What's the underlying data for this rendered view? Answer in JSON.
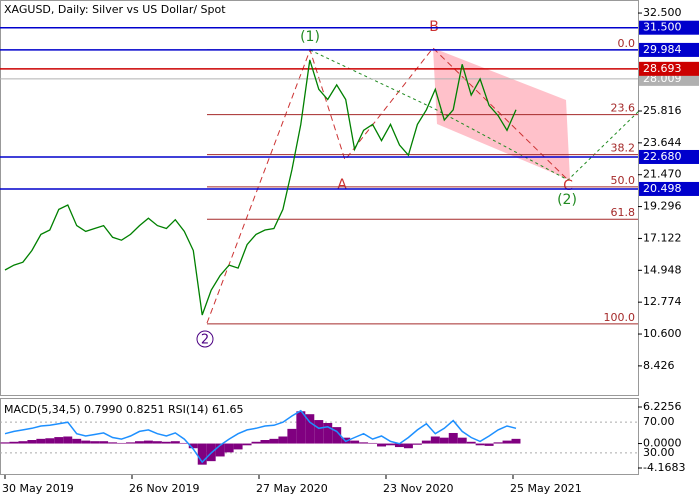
{
  "chart_data": {
    "type": "line",
    "title": "XAGUSD, Daily:  Silver vs US Dollar/ Spot",
    "x_labels": [
      "30 May 2019",
      "26 Nov 2019",
      "27 May 2020",
      "23 Nov 2020",
      "25 May 2021"
    ],
    "series": [
      {
        "color": "#008000",
        "values": [
          14.97,
          15.3,
          15.5,
          16.3,
          17.4,
          17.7,
          19.1,
          19.4,
          18.0,
          17.6,
          17.8,
          18.0,
          17.2,
          17.0,
          17.4,
          18.0,
          18.5,
          18.0,
          17.8,
          18.4,
          17.6,
          16.3,
          11.9,
          13.6,
          14.6,
          15.3,
          15.1,
          16.7,
          17.4,
          17.7,
          17.8,
          19.1,
          21.8,
          24.9,
          29.3,
          27.3,
          26.6,
          27.6,
          26.6,
          23.2,
          24.5,
          24.9,
          23.8,
          24.9,
          23.5,
          22.8,
          24.9,
          25.9,
          27.3,
          25.2,
          25.9,
          29.0,
          26.9,
          28.0,
          26.2,
          25.5,
          24.5,
          25.9
        ]
      }
    ],
    "ylim": [
      6.44,
      33.39
    ],
    "yticks": [
      {
        "value": 32.5,
        "label": "32.500"
      },
      25.816,
      23.644,
      {
        "value": 21.47,
        "label": "21.470"
      },
      19.296,
      17.122,
      14.948,
      12.774,
      {
        "value": 10.6,
        "label": "10.600"
      },
      8.426
    ],
    "levels": [
      {
        "value": 31.5,
        "label": "31.500",
        "color": "#0000cc"
      },
      {
        "value": 29.984,
        "color": "#0000cc"
      },
      {
        "value": 28.693,
        "color": "#cc0000"
      },
      {
        "value": 22.68,
        "label": "22.680",
        "color": "#0000cc"
      },
      {
        "value": 20.498,
        "color": "#0000cc"
      }
    ],
    "current_price": {
      "value": 28.009,
      "color": "#b0b0b0"
    },
    "fibonacci": {
      "high": 29.984,
      "low": 11.29,
      "color": "#a52a2a",
      "levels": [
        {
          "value": 0,
          "label": "0.0"
        },
        23.6,
        38.2,
        {
          "value": 50,
          "label": "50.0"
        },
        61.8,
        {
          "value": 100,
          "label": "100.0"
        }
      ]
    },
    "waves": [
      "(1)",
      "B",
      "A",
      "C",
      "(2)",
      "2"
    ],
    "indicator": {
      "title": "MACD(5,34,5) 0.7990 0.8251 RSI(14) 61.65",
      "macd": {
        "color": "#800080",
        "ylim": [
          -5.19,
          7.76
        ],
        "yticks": [
          6.2256,
          {
            "value": 0,
            "label": "0.0000"
          },
          -4.1683
        ],
        "values": [
          0.2,
          0.3,
          0.4,
          0.6,
          0.8,
          0.9,
          1.1,
          1.2,
          0.8,
          0.5,
          0.4,
          0.4,
          0.2,
          0.1,
          0.2,
          0.4,
          0.5,
          0.4,
          0.3,
          0.4,
          0.1,
          -0.8,
          -3.6,
          -3.0,
          -2.2,
          -1.5,
          -1.0,
          -0.3,
          0.3,
          0.6,
          0.8,
          1.2,
          2.5,
          5.5,
          5.0,
          4.0,
          3.5,
          2.8,
          1.0,
          0.5,
          0.2,
          0.1,
          -0.5,
          -0.3,
          -0.6,
          -0.8,
          -0.2,
          0.5,
          1.2,
          1.0,
          1.8,
          1.0,
          0.3,
          -0.3,
          -0.4,
          0.2,
          0.5,
          0.8
        ]
      },
      "rsi": {
        "color": "#1e90ff",
        "ylim": [
          2.5,
          101.5
        ],
        "yticks": [
          {
            "value": 70,
            "label": "70.00"
          },
          {
            "value": 30,
            "label": "30.00"
          }
        ],
        "values": [
          55,
          58,
          60,
          62,
          65,
          66,
          68,
          70,
          55,
          52,
          54,
          56,
          50,
          48,
          52,
          58,
          60,
          55,
          52,
          56,
          48,
          35,
          18,
          30,
          40,
          48,
          55,
          60,
          62,
          65,
          66,
          70,
          78,
          85,
          70,
          62,
          64,
          58,
          45,
          50,
          55,
          48,
          52,
          45,
          42,
          50,
          60,
          68,
          55,
          62,
          72,
          58,
          50,
          45,
          52,
          60,
          65,
          62
        ]
      }
    }
  }
}
